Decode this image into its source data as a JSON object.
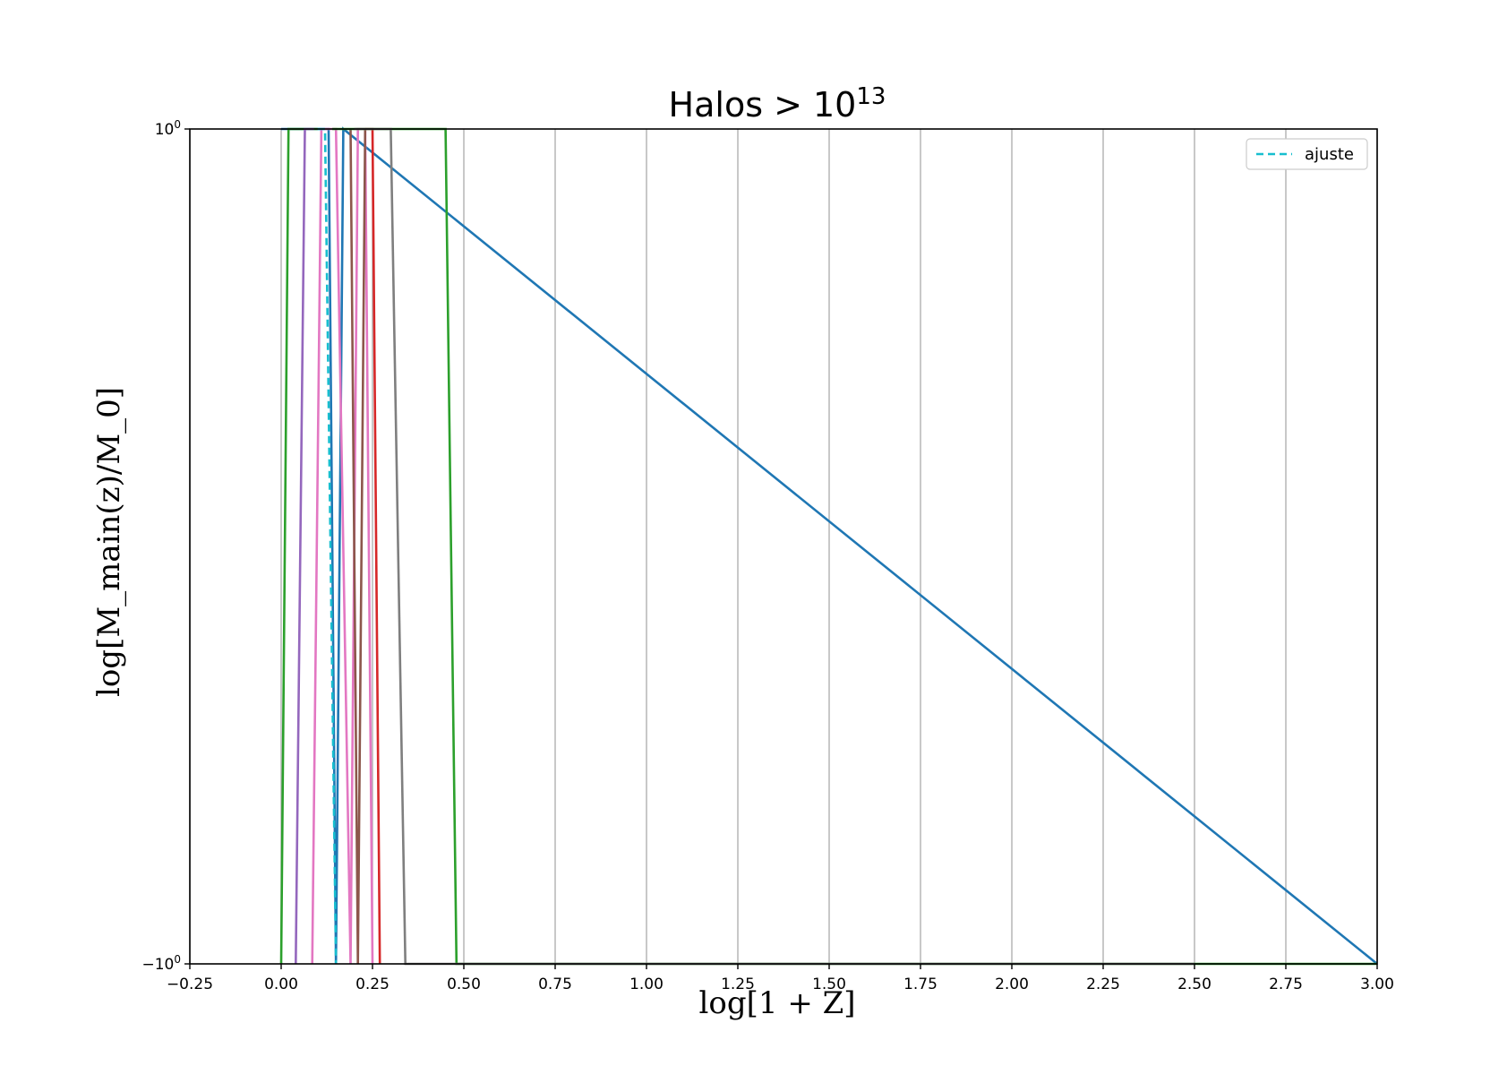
{
  "chart_data": {
    "type": "line",
    "title": "Halos > 10",
    "title_superscript": "13",
    "xlabel": "log[1 + Z]",
    "ylabel": "log[M_main(z)/M_0]",
    "xlim": [
      -0.25,
      3.0
    ],
    "ylim": [
      -100,
      1
    ],
    "x_ticks": [
      -0.25,
      0.0,
      0.25,
      0.5,
      0.75,
      1.0,
      1.25,
      1.5,
      1.75,
      2.0,
      2.25,
      2.5,
      2.75,
      3.0
    ],
    "x_tick_labels": [
      "−0.25",
      "0.00",
      "0.25",
      "0.50",
      "0.75",
      "1.00",
      "1.25",
      "1.50",
      "1.75",
      "2.00",
      "2.25",
      "2.50",
      "2.75",
      "3.00"
    ],
    "y_ticks": [
      1,
      -100
    ],
    "y_tick_labels": [
      "10^0",
      "−10^0"
    ],
    "grid": "x",
    "legend_position": "top-right",
    "series": [
      {
        "color": "#1f77b4",
        "style": "solid",
        "x": [
          0.0,
          0.13,
          0.15,
          0.17,
          3.0
        ],
        "y": [
          1,
          1,
          -100,
          1,
          -100
        ]
      },
      {
        "color": "#2ca02c",
        "style": "solid",
        "x": [
          0.0,
          0.02,
          0.06,
          0.1
        ],
        "y": [
          -100,
          1,
          1,
          1
        ]
      },
      {
        "color": "#9467bd",
        "style": "solid",
        "x": [
          0.04,
          0.065,
          0.09
        ],
        "y": [
          -100,
          1,
          1
        ]
      },
      {
        "color": "#e377c2",
        "style": "solid",
        "x": [
          0.085,
          0.11,
          0.13,
          0.15,
          0.19,
          0.21,
          0.23,
          0.25
        ],
        "y": [
          -100,
          1,
          1,
          1,
          -100,
          1,
          1,
          -100
        ]
      },
      {
        "color": "#d62728",
        "style": "solid",
        "x": [
          0.23,
          0.25,
          0.27
        ],
        "y": [
          1,
          1,
          -100
        ]
      },
      {
        "color": "#8c564b",
        "style": "solid",
        "x": [
          0.19,
          0.21,
          0.23
        ],
        "y": [
          1,
          -100,
          1
        ]
      },
      {
        "color": "#2ca02c",
        "style": "solid",
        "x": [
          0.14,
          0.16,
          0.2,
          0.3,
          0.35,
          0.45,
          0.48,
          3.0
        ],
        "y": [
          1,
          1,
          1,
          1,
          1,
          1,
          -100,
          -100
        ]
      },
      {
        "color": "#7f7f7f",
        "style": "solid",
        "x": [
          0.2,
          0.3,
          0.34,
          0.45,
          1.0,
          2.5
        ],
        "y": [
          1,
          1,
          -100,
          -100,
          -100,
          -100
        ]
      },
      {
        "name": "ajuste",
        "color": "#17becf",
        "style": "dashed",
        "x": [
          0.1,
          0.12,
          0.15
        ],
        "y": [
          1,
          1,
          -100
        ]
      }
    ]
  }
}
